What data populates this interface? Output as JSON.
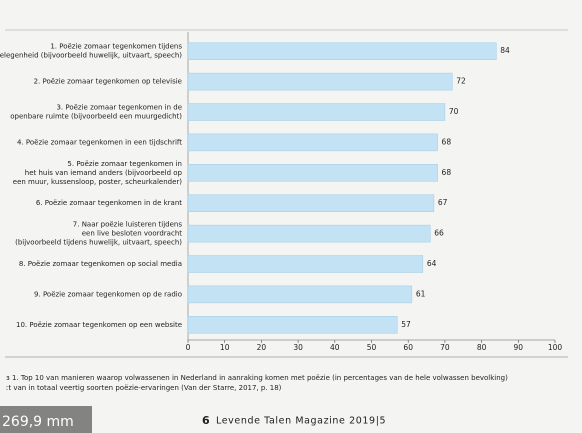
{
  "chart_data": {
    "type": "bar",
    "orientation": "horizontal",
    "categories": [
      [
        "1. Poëzie zomaar tegenkomen tijdens",
        "elegenheid (bijvoorbeeld huwelijk, uitvaart, speech)"
      ],
      [
        "2. Poëzie zomaar tegenkomen op televisie"
      ],
      [
        "3. Poëzie zomaar tegenkomen in de",
        "openbare ruimte (bijvoorbeeld een muurgedicht)"
      ],
      [
        "4. Poëzie zomaar tegenkomen in een tijdschrift"
      ],
      [
        "5. Poëzie zomaar tegenkomen in",
        "het huis van iemand anders (bijvoorbeeld op",
        "een muur, kussensloop, poster, scheurkalender)"
      ],
      [
        "6. Poëzie zomaar tegenkomen in de krant"
      ],
      [
        "7. Naar poëzie luisteren tijdens",
        "een live besloten voordracht",
        "(bijvoorbeeld tijdens huwelijk, uitvaart, speech)"
      ],
      [
        "8. Poëzie zomaar tegenkomen op social media"
      ],
      [
        "9. Poëzie zomaar tegenkomen op de radio"
      ],
      [
        "10. Poëzie zomaar tegenkomen op een website"
      ]
    ],
    "values": [
      84,
      72,
      70,
      68,
      68,
      67,
      66,
      64,
      61,
      57
    ],
    "color": "#c3e2f4",
    "xlim": [
      0,
      100
    ],
    "xticks": [
      0,
      10,
      20,
      30,
      40,
      50,
      60,
      70,
      80,
      90,
      100
    ],
    "grid": false
  },
  "caption": [
    "ɜ 1. Top 10 van manieren waarop volwassenen in Nederland in aanraking komen met poëzie (in percentages van de hele volwassen bevolking)",
    "ːt van in totaal veertig soorten poëzie-ervaringen (Van der Starre, 2017, p. 18)"
  ],
  "footer": {
    "page": "6",
    "magazine": "Levende Talen Magazine 2019|5"
  },
  "overlay": "269,9 mm"
}
